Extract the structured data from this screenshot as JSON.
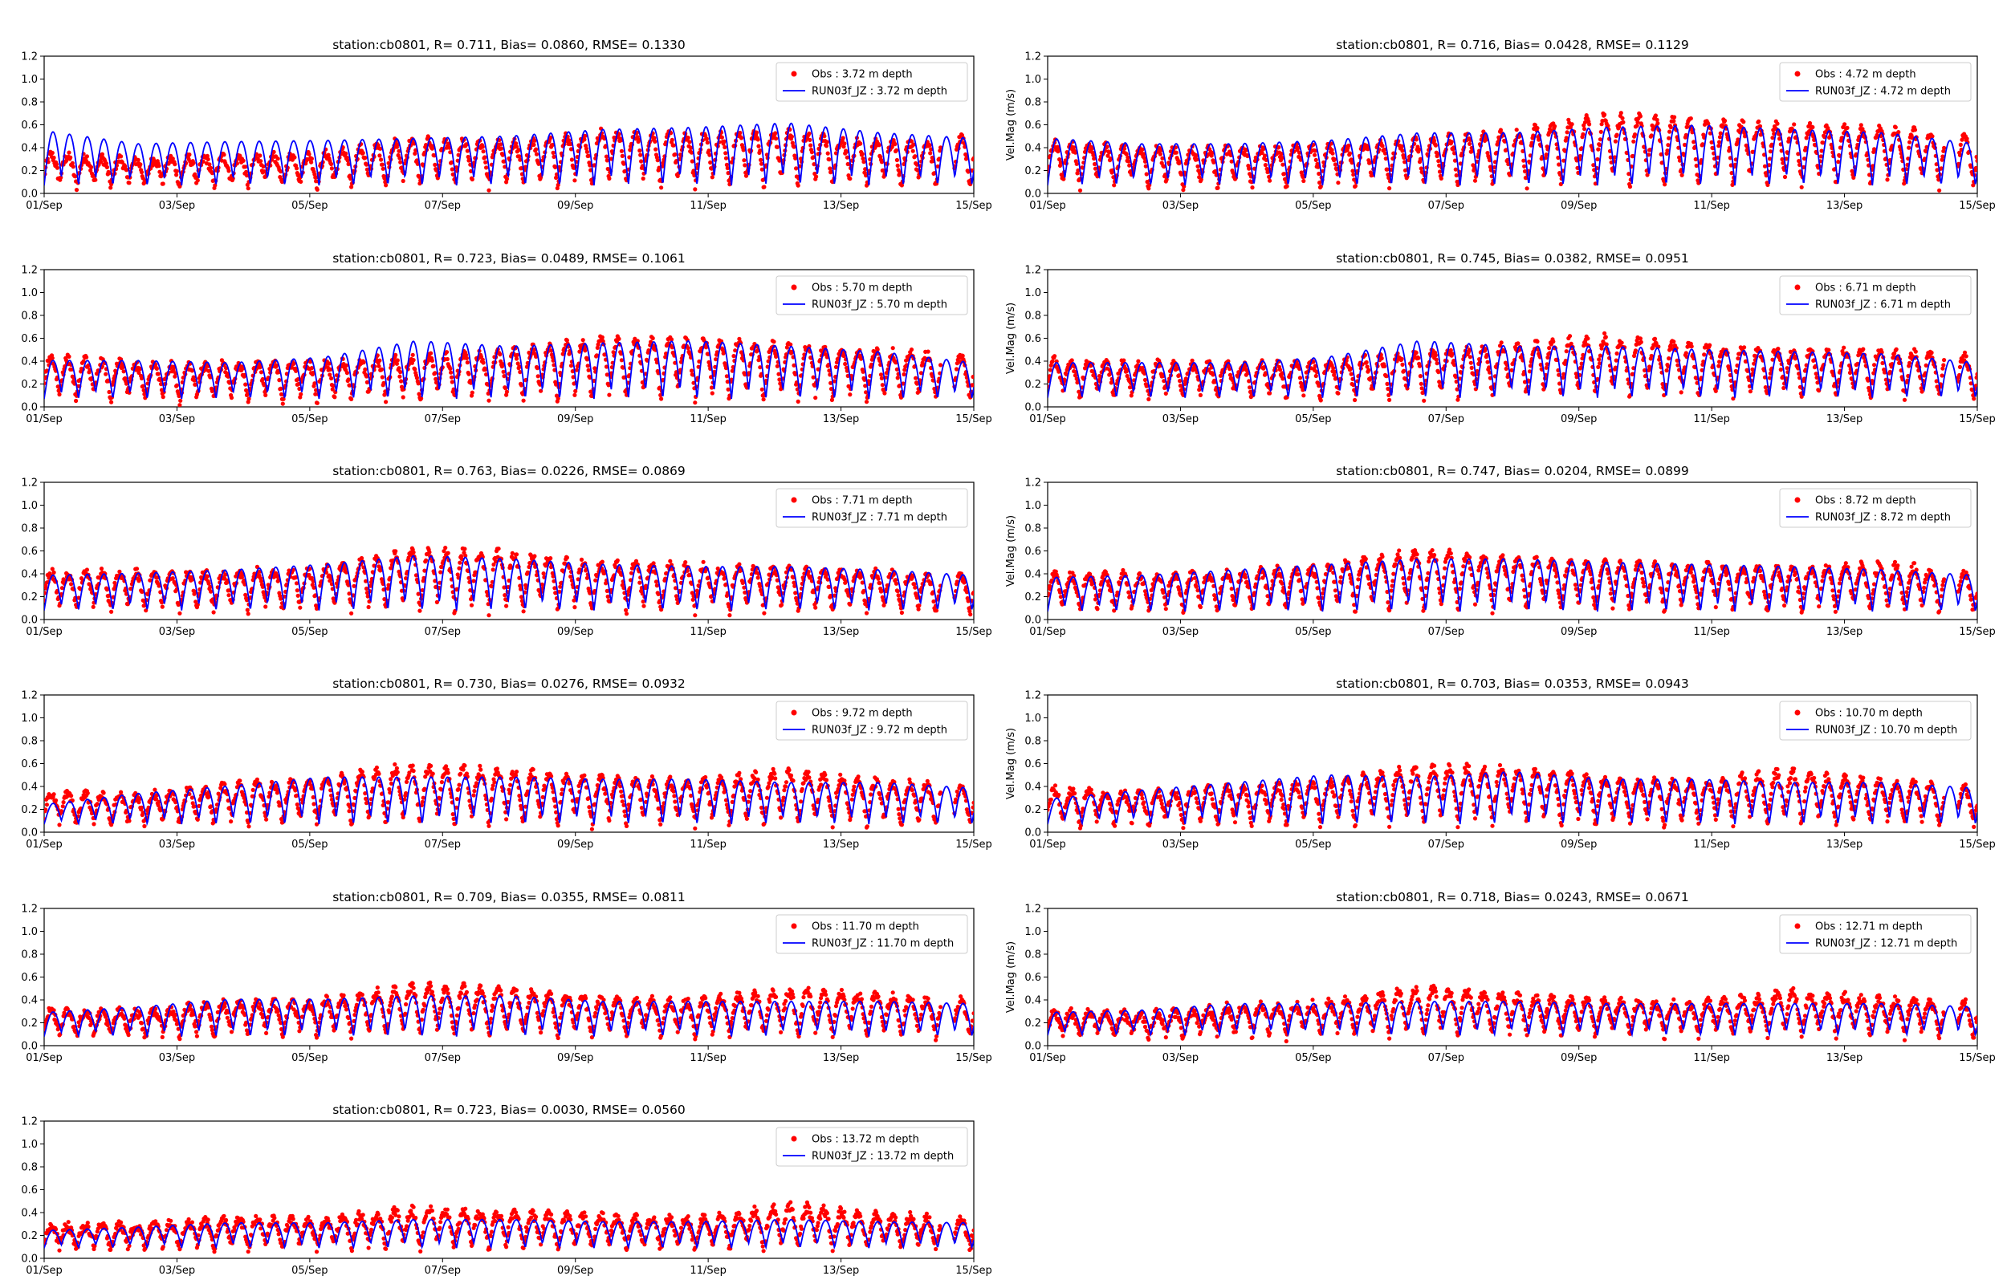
{
  "figure": {
    "x_tick_labels": [
      "01/Sep",
      "03/Sep",
      "05/Sep",
      "07/Sep",
      "09/Sep",
      "11/Sep",
      "13/Sep",
      "15/Sep"
    ],
    "y_tick_labels": [
      "0.0",
      "0.2",
      "0.4",
      "0.6",
      "0.8",
      "1.0",
      "1.2"
    ],
    "colors": {
      "obs": "#ff0000",
      "model": "#0000ff"
    }
  },
  "chart_data": [
    {
      "type": "line",
      "title": "station:cb0801, R= 0.711, Bias= 0.0860, RMSE= 0.1330",
      "ylabel": "",
      "xlim": [
        0,
        14
      ],
      "ylim": [
        0,
        1.2
      ],
      "series": [
        {
          "name": "Obs : 3.72 m depth",
          "style": "scatter",
          "mean": 0.2,
          "amp": 0.14,
          "peaks": [
            0.35,
            0.3,
            0.33,
            0.35,
            0.48,
            0.45,
            0.55,
            0.52,
            0.55,
            0.45,
            0.5
          ]
        },
        {
          "name": "RUN03f_JZ : 3.72 m depth",
          "style": "line",
          "mean": 0.26,
          "amp": 0.19,
          "peaks": [
            0.57,
            0.45,
            0.47,
            0.48,
            0.5,
            0.52,
            0.58,
            0.6,
            0.64,
            0.55,
            0.5
          ]
        }
      ],
      "legend": "top-right",
      "grid": false
    },
    {
      "type": "line",
      "title": "station:cb0801, R= 0.716, Bias= 0.0428, RMSE= 0.1129",
      "ylabel": "Vel.Mag (m/s)",
      "xlim": [
        0,
        14
      ],
      "ylim": [
        0,
        1.2
      ],
      "series": [
        {
          "name": "Obs : 4.72 m depth",
          "style": "scatter",
          "mean": 0.22,
          "amp": 0.16,
          "peaks": [
            0.45,
            0.4,
            0.4,
            0.42,
            0.48,
            0.55,
            0.7,
            0.65,
            0.6,
            0.58,
            0.5
          ]
        },
        {
          "name": "RUN03f_JZ : 4.72 m depth",
          "style": "line",
          "mean": 0.24,
          "amp": 0.17,
          "peaks": [
            0.5,
            0.45,
            0.45,
            0.48,
            0.55,
            0.55,
            0.6,
            0.62,
            0.58,
            0.55,
            0.45
          ]
        }
      ],
      "legend": "top-right",
      "grid": false
    },
    {
      "type": "line",
      "title": "station:cb0801, R= 0.723, Bias= 0.0489, RMSE= 0.1061",
      "ylabel": "",
      "xlim": [
        0,
        14
      ],
      "ylim": [
        0,
        1.2
      ],
      "series": [
        {
          "name": "Obs : 5.70 m depth",
          "style": "scatter",
          "mean": 0.2,
          "amp": 0.15,
          "peaks": [
            0.45,
            0.38,
            0.38,
            0.4,
            0.45,
            0.5,
            0.6,
            0.6,
            0.55,
            0.5,
            0.45
          ]
        },
        {
          "name": "RUN03f_JZ : 5.70 m depth",
          "style": "line",
          "mean": 0.23,
          "amp": 0.16,
          "peaks": [
            0.42,
            0.42,
            0.4,
            0.45,
            0.6,
            0.55,
            0.58,
            0.6,
            0.55,
            0.5,
            0.4
          ]
        }
      ],
      "legend": "top-right",
      "grid": false
    },
    {
      "type": "line",
      "title": "station:cb0801, R= 0.745, Bias= 0.0382, RMSE= 0.0951",
      "ylabel": "Vel.Mag (m/s)",
      "xlim": [
        0,
        14
      ],
      "ylim": [
        0,
        1.2
      ],
      "series": [
        {
          "name": "Obs : 6.71 m depth",
          "style": "scatter",
          "mean": 0.22,
          "amp": 0.14,
          "peaks": [
            0.42,
            0.38,
            0.38,
            0.4,
            0.48,
            0.55,
            0.62,
            0.55,
            0.5,
            0.5,
            0.45
          ]
        },
        {
          "name": "RUN03f_JZ : 6.71 m depth",
          "style": "line",
          "mean": 0.23,
          "amp": 0.15,
          "peaks": [
            0.4,
            0.4,
            0.4,
            0.45,
            0.6,
            0.55,
            0.55,
            0.52,
            0.5,
            0.48,
            0.4
          ]
        }
      ],
      "legend": "top-right",
      "grid": false
    },
    {
      "type": "line",
      "title": "station:cb0801, R= 0.763, Bias= 0.0226, RMSE= 0.0869",
      "ylabel": "",
      "xlim": [
        0,
        14
      ],
      "ylim": [
        0,
        1.2
      ],
      "series": [
        {
          "name": "Obs : 7.71 m depth",
          "style": "scatter",
          "mean": 0.22,
          "amp": 0.15,
          "peaks": [
            0.42,
            0.42,
            0.42,
            0.45,
            0.62,
            0.6,
            0.5,
            0.48,
            0.45,
            0.42,
            0.4
          ]
        },
        {
          "name": "RUN03f_JZ : 7.71 m depth",
          "style": "line",
          "mean": 0.24,
          "amp": 0.16,
          "peaks": [
            0.4,
            0.42,
            0.45,
            0.5,
            0.58,
            0.55,
            0.5,
            0.48,
            0.48,
            0.45,
            0.4
          ]
        }
      ],
      "legend": "top-right",
      "grid": false
    },
    {
      "type": "line",
      "title": "station:cb0801, R= 0.747, Bias= 0.0204, RMSE= 0.0899",
      "ylabel": "Vel.Mag (m/s)",
      "xlim": [
        0,
        14
      ],
      "ylim": [
        0,
        1.2
      ],
      "series": [
        {
          "name": "Obs : 8.72 m depth",
          "style": "scatter",
          "mean": 0.22,
          "amp": 0.15,
          "peaks": [
            0.4,
            0.4,
            0.42,
            0.48,
            0.62,
            0.55,
            0.5,
            0.48,
            0.45,
            0.5,
            0.4
          ]
        },
        {
          "name": "RUN03f_JZ : 8.72 m depth",
          "style": "line",
          "mean": 0.23,
          "amp": 0.16,
          "peaks": [
            0.38,
            0.4,
            0.45,
            0.5,
            0.55,
            0.55,
            0.52,
            0.5,
            0.48,
            0.45,
            0.4
          ]
        }
      ],
      "legend": "top-right",
      "grid": false
    },
    {
      "type": "line",
      "title": "station:cb0801, R= 0.730, Bias= 0.0276, RMSE= 0.0932",
      "ylabel": "",
      "xlim": [
        0,
        14
      ],
      "ylim": [
        0,
        1.2
      ],
      "series": [
        {
          "name": "Obs : 9.72 m depth",
          "style": "scatter",
          "mean": 0.21,
          "amp": 0.15,
          "peaks": [
            0.35,
            0.32,
            0.42,
            0.48,
            0.6,
            0.55,
            0.48,
            0.45,
            0.55,
            0.45,
            0.4
          ]
        },
        {
          "name": "RUN03f_JZ : 9.72 m depth",
          "style": "line",
          "mean": 0.23,
          "amp": 0.16,
          "peaks": [
            0.25,
            0.35,
            0.42,
            0.5,
            0.5,
            0.5,
            0.48,
            0.48,
            0.45,
            0.45,
            0.4
          ]
        }
      ],
      "legend": "top-right",
      "grid": false
    },
    {
      "type": "line",
      "title": "station:cb0801, R= 0.703, Bias= 0.0353, RMSE= 0.0943",
      "ylabel": "Vel.Mag (m/s)",
      "xlim": [
        0,
        14
      ],
      "ylim": [
        0,
        1.2
      ],
      "series": [
        {
          "name": "Obs : 10.70 m depth",
          "style": "scatter",
          "mean": 0.21,
          "amp": 0.15,
          "peaks": [
            0.38,
            0.35,
            0.4,
            0.45,
            0.58,
            0.58,
            0.48,
            0.45,
            0.55,
            0.45,
            0.4
          ]
        },
        {
          "name": "RUN03f_JZ : 10.70 m depth",
          "style": "line",
          "mean": 0.23,
          "amp": 0.16,
          "peaks": [
            0.3,
            0.38,
            0.45,
            0.52,
            0.5,
            0.55,
            0.48,
            0.48,
            0.45,
            0.45,
            0.4
          ]
        }
      ],
      "legend": "top-right",
      "grid": false
    },
    {
      "type": "line",
      "title": "station:cb0801, R= 0.709, Bias= 0.0355, RMSE= 0.0811",
      "ylabel": "",
      "xlim": [
        0,
        14
      ],
      "ylim": [
        0,
        1.2
      ],
      "series": [
        {
          "name": "Obs : 11.70 m depth",
          "style": "scatter",
          "mean": 0.2,
          "amp": 0.12,
          "peaks": [
            0.32,
            0.3,
            0.38,
            0.4,
            0.55,
            0.5,
            0.42,
            0.4,
            0.5,
            0.45,
            0.4
          ]
        },
        {
          "name": "RUN03f_JZ : 11.70 m depth",
          "style": "line",
          "mean": 0.22,
          "amp": 0.14,
          "peaks": [
            0.3,
            0.35,
            0.42,
            0.42,
            0.45,
            0.45,
            0.4,
            0.4,
            0.4,
            0.4,
            0.38
          ]
        }
      ],
      "legend": "top-right",
      "grid": false
    },
    {
      "type": "line",
      "title": "station:cb0801, R= 0.718, Bias= 0.0243, RMSE= 0.0671",
      "ylabel": "Vel.Mag (m/s)",
      "xlim": [
        0,
        14
      ],
      "ylim": [
        0,
        1.2
      ],
      "series": [
        {
          "name": "Obs : 12.71 m depth",
          "style": "scatter",
          "mean": 0.19,
          "amp": 0.11,
          "peaks": [
            0.3,
            0.28,
            0.35,
            0.38,
            0.52,
            0.45,
            0.4,
            0.38,
            0.48,
            0.42,
            0.38
          ]
        },
        {
          "name": "RUN03f_JZ : 12.71 m depth",
          "style": "line",
          "mean": 0.21,
          "amp": 0.12,
          "peaks": [
            0.3,
            0.32,
            0.38,
            0.38,
            0.4,
            0.4,
            0.38,
            0.38,
            0.38,
            0.38,
            0.35
          ]
        }
      ],
      "legend": "top-right",
      "grid": false
    },
    {
      "type": "line",
      "title": "station:cb0801, R= 0.723, Bias= 0.0030, RMSE= 0.0560",
      "ylabel": "",
      "xlim": [
        0,
        14
      ],
      "ylim": [
        0,
        1.2
      ],
      "series": [
        {
          "name": "Obs : 13.72 m depth",
          "style": "scatter",
          "mean": 0.18,
          "amp": 0.1,
          "peaks": [
            0.28,
            0.3,
            0.35,
            0.35,
            0.45,
            0.4,
            0.38,
            0.35,
            0.48,
            0.38,
            0.35
          ]
        },
        {
          "name": "RUN03f_JZ : 13.72 m depth",
          "style": "line",
          "mean": 0.19,
          "amp": 0.1,
          "peaks": [
            0.25,
            0.28,
            0.32,
            0.32,
            0.35,
            0.35,
            0.33,
            0.33,
            0.35,
            0.33,
            0.32
          ]
        }
      ],
      "legend": "top-right",
      "grid": false
    }
  ]
}
